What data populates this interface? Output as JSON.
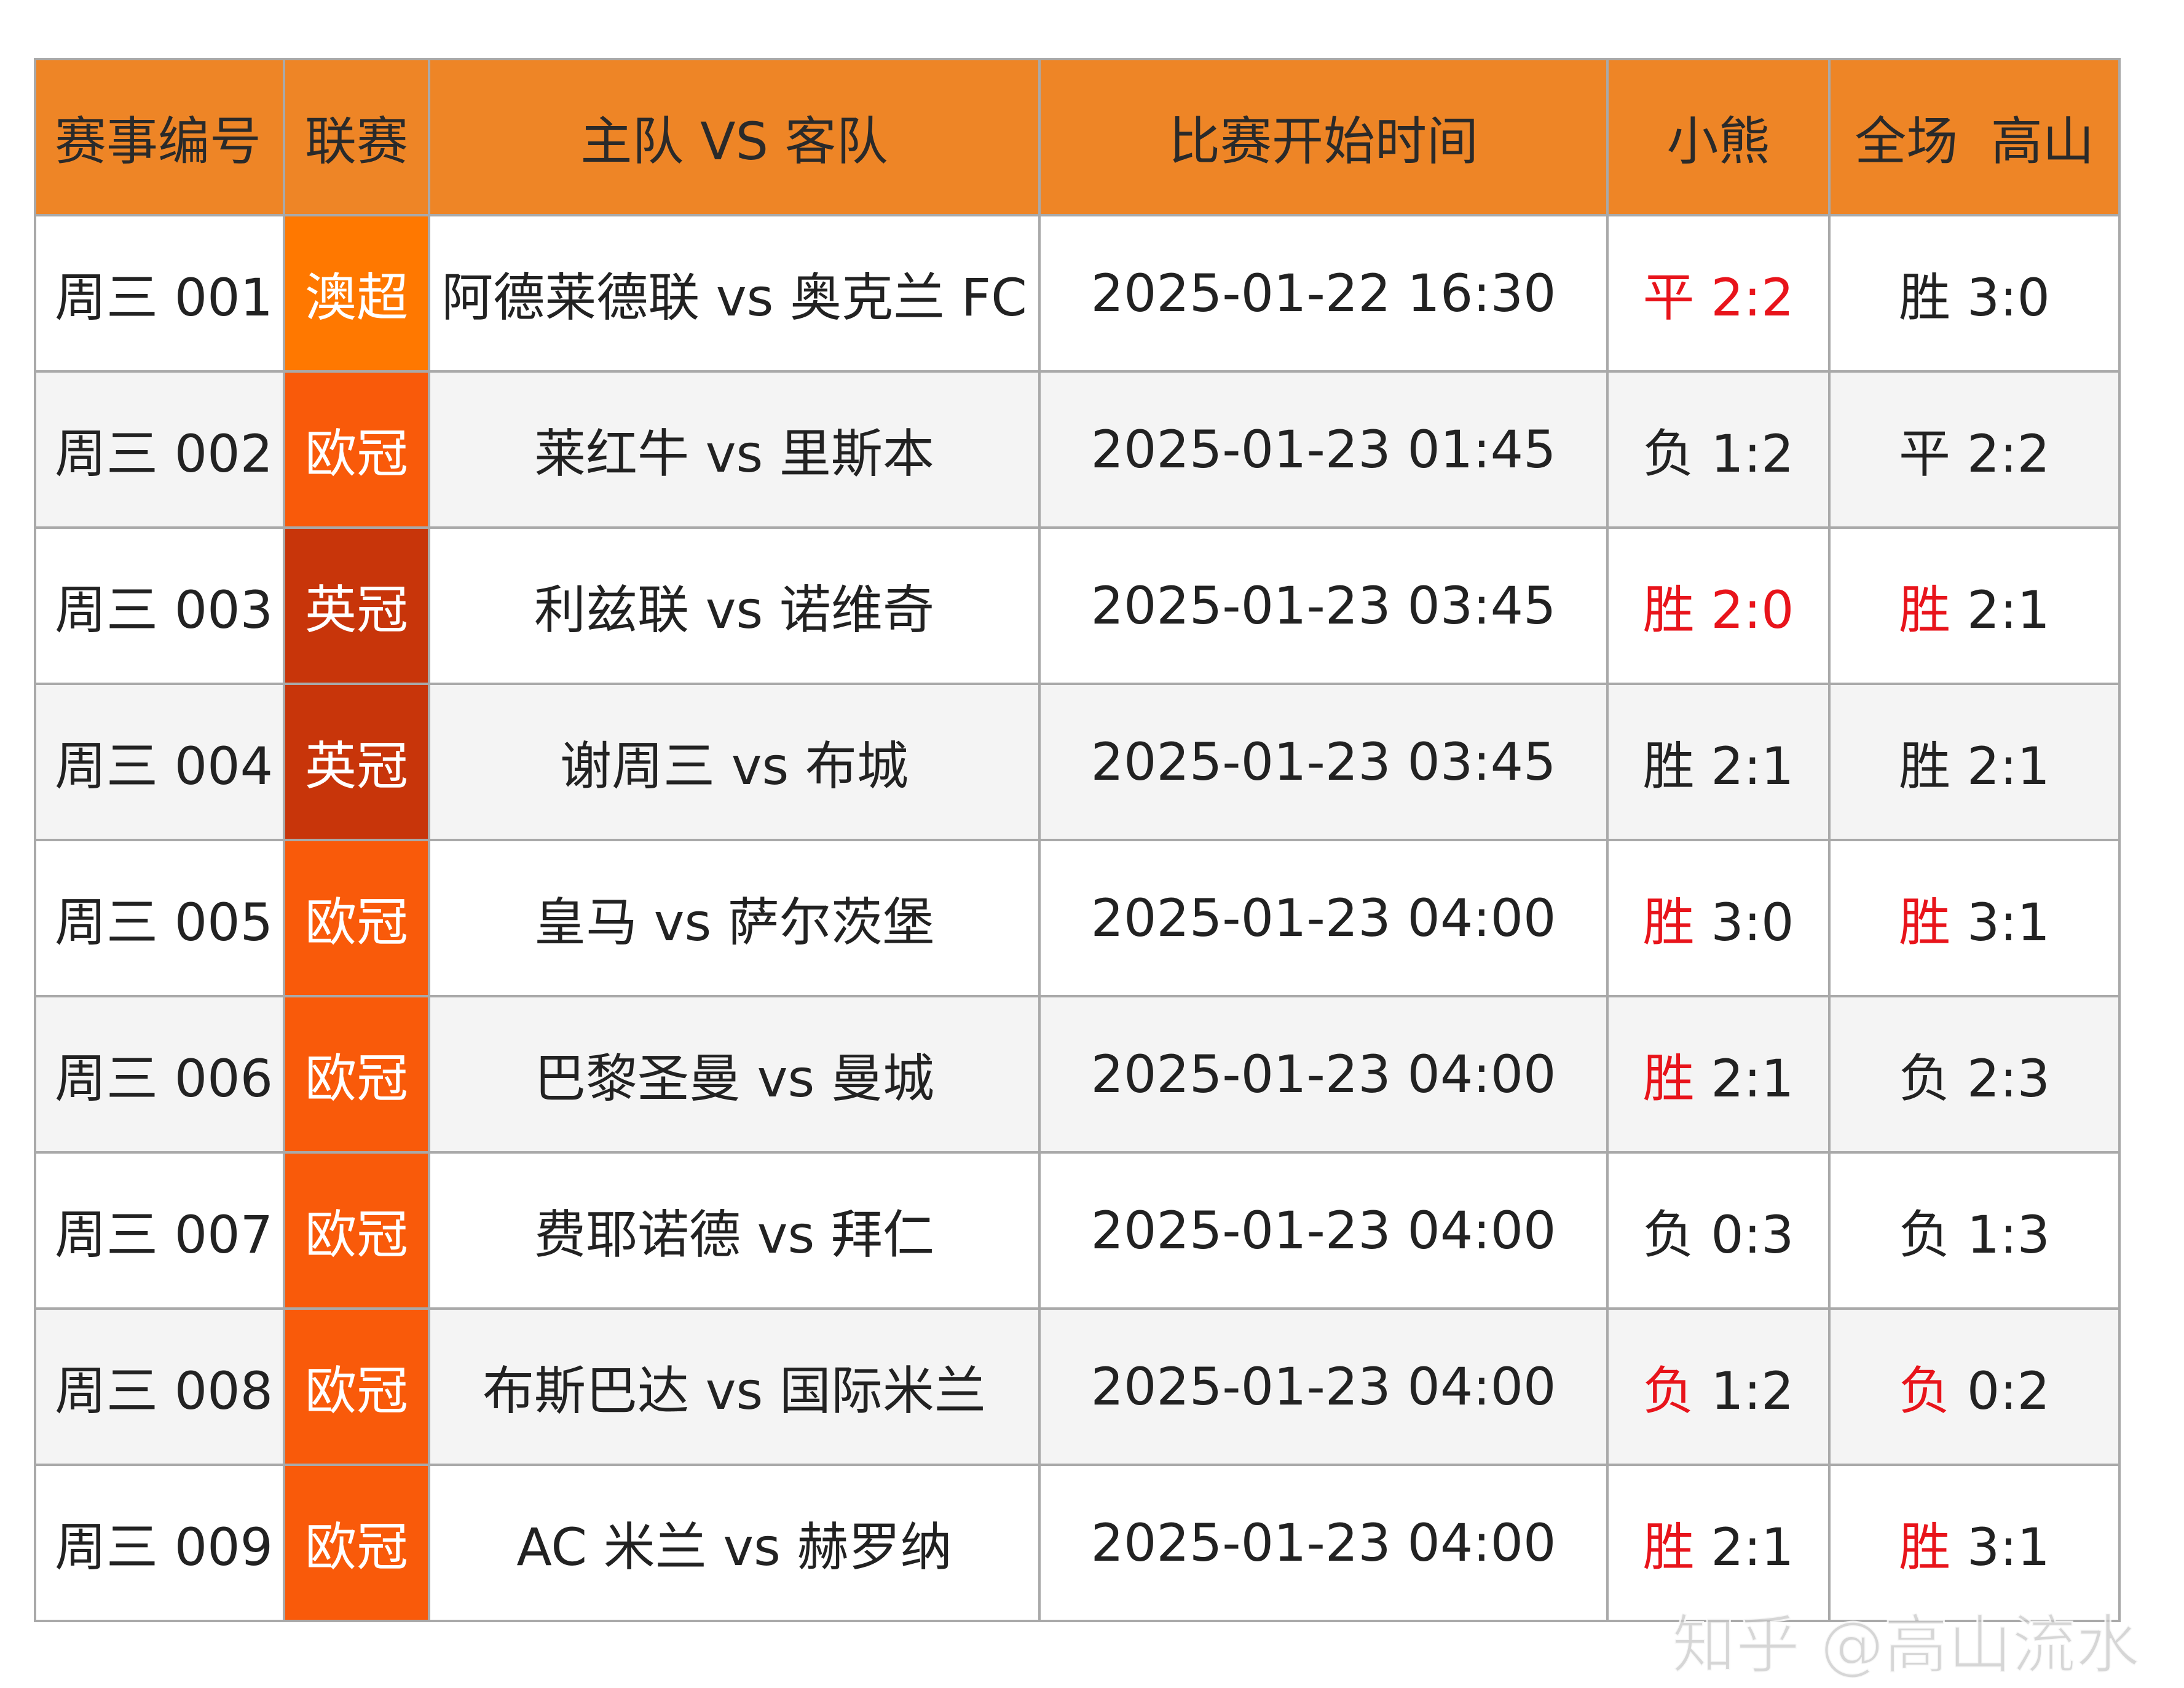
{
  "headers": [
    "赛事编号",
    "联赛",
    "主队 VS 客队",
    "比赛开始时间",
    "小熊",
    "全场  高山"
  ],
  "league_colors": {
    "澳超": "#ff7800",
    "欧冠": "#f95a0a",
    "英冠": "#c8350a"
  },
  "result_red": "#e8141b",
  "rows": [
    {
      "id": "周三 001",
      "league": "澳超",
      "match": "阿德莱德联 vs 奥克兰 FC",
      "time": "2025-01-22 16:30",
      "xiaoxiong": "平 2:2",
      "xiaoxiong_red": true,
      "gaoshan": "胜 3:0",
      "gaoshan_red": false
    },
    {
      "id": "周三 002",
      "league": "欧冠",
      "match": "莱红牛 vs 里斯本",
      "time": "2025-01-23 01:45",
      "xiaoxiong": "负 1:2",
      "xiaoxiong_red": false,
      "gaoshan": "平 2:2",
      "gaoshan_red": false
    },
    {
      "id": "周三 003",
      "league": "英冠",
      "match": "利兹联 vs 诺维奇",
      "time": "2025-01-23 03:45",
      "xiaoxiong": "胜 2:0",
      "xiaoxiong_red": true,
      "gaoshan": "胜 2:1",
      "gaoshan_red": "partial"
    },
    {
      "id": "周三 004",
      "league": "英冠",
      "match": "谢周三 vs 布城",
      "time": "2025-01-23 03:45",
      "xiaoxiong": "胜 2:1",
      "xiaoxiong_red": false,
      "gaoshan": "胜 2:1",
      "gaoshan_red": false
    },
    {
      "id": "周三 005",
      "league": "欧冠",
      "match": "皇马 vs 萨尔茨堡",
      "time": "2025-01-23 04:00",
      "xiaoxiong": "胜 3:0",
      "xiaoxiong_red": "partial",
      "gaoshan": "胜 3:1",
      "gaoshan_red": "partial"
    },
    {
      "id": "周三 006",
      "league": "欧冠",
      "match": "巴黎圣曼 vs 曼城",
      "time": "2025-01-23 04:00",
      "xiaoxiong": "胜 2:1",
      "xiaoxiong_red": "partial",
      "gaoshan": "负 2:3",
      "gaoshan_red": false
    },
    {
      "id": "周三 007",
      "league": "欧冠",
      "match": "费耶诺德 vs 拜仁",
      "time": "2025-01-23 04:00",
      "xiaoxiong": "负 0:3",
      "xiaoxiong_red": false,
      "gaoshan": "负 1:3",
      "gaoshan_red": false
    },
    {
      "id": "周三 008",
      "league": "欧冠",
      "match": "布斯巴达 vs 国际米兰",
      "time": "2025-01-23 04:00",
      "xiaoxiong": "负 1:2",
      "xiaoxiong_red": "partial",
      "gaoshan": "负 0:2",
      "gaoshan_red": "partial"
    },
    {
      "id": "周三 009",
      "league": "欧冠",
      "match": "AC 米兰 vs 赫罗纳",
      "time": "2025-01-23 04:00",
      "xiaoxiong": "胜 2:1",
      "xiaoxiong_red": "partial",
      "gaoshan": "胜 3:1",
      "gaoshan_red": "partial"
    }
  ],
  "watermark": "知乎 @高山流水"
}
